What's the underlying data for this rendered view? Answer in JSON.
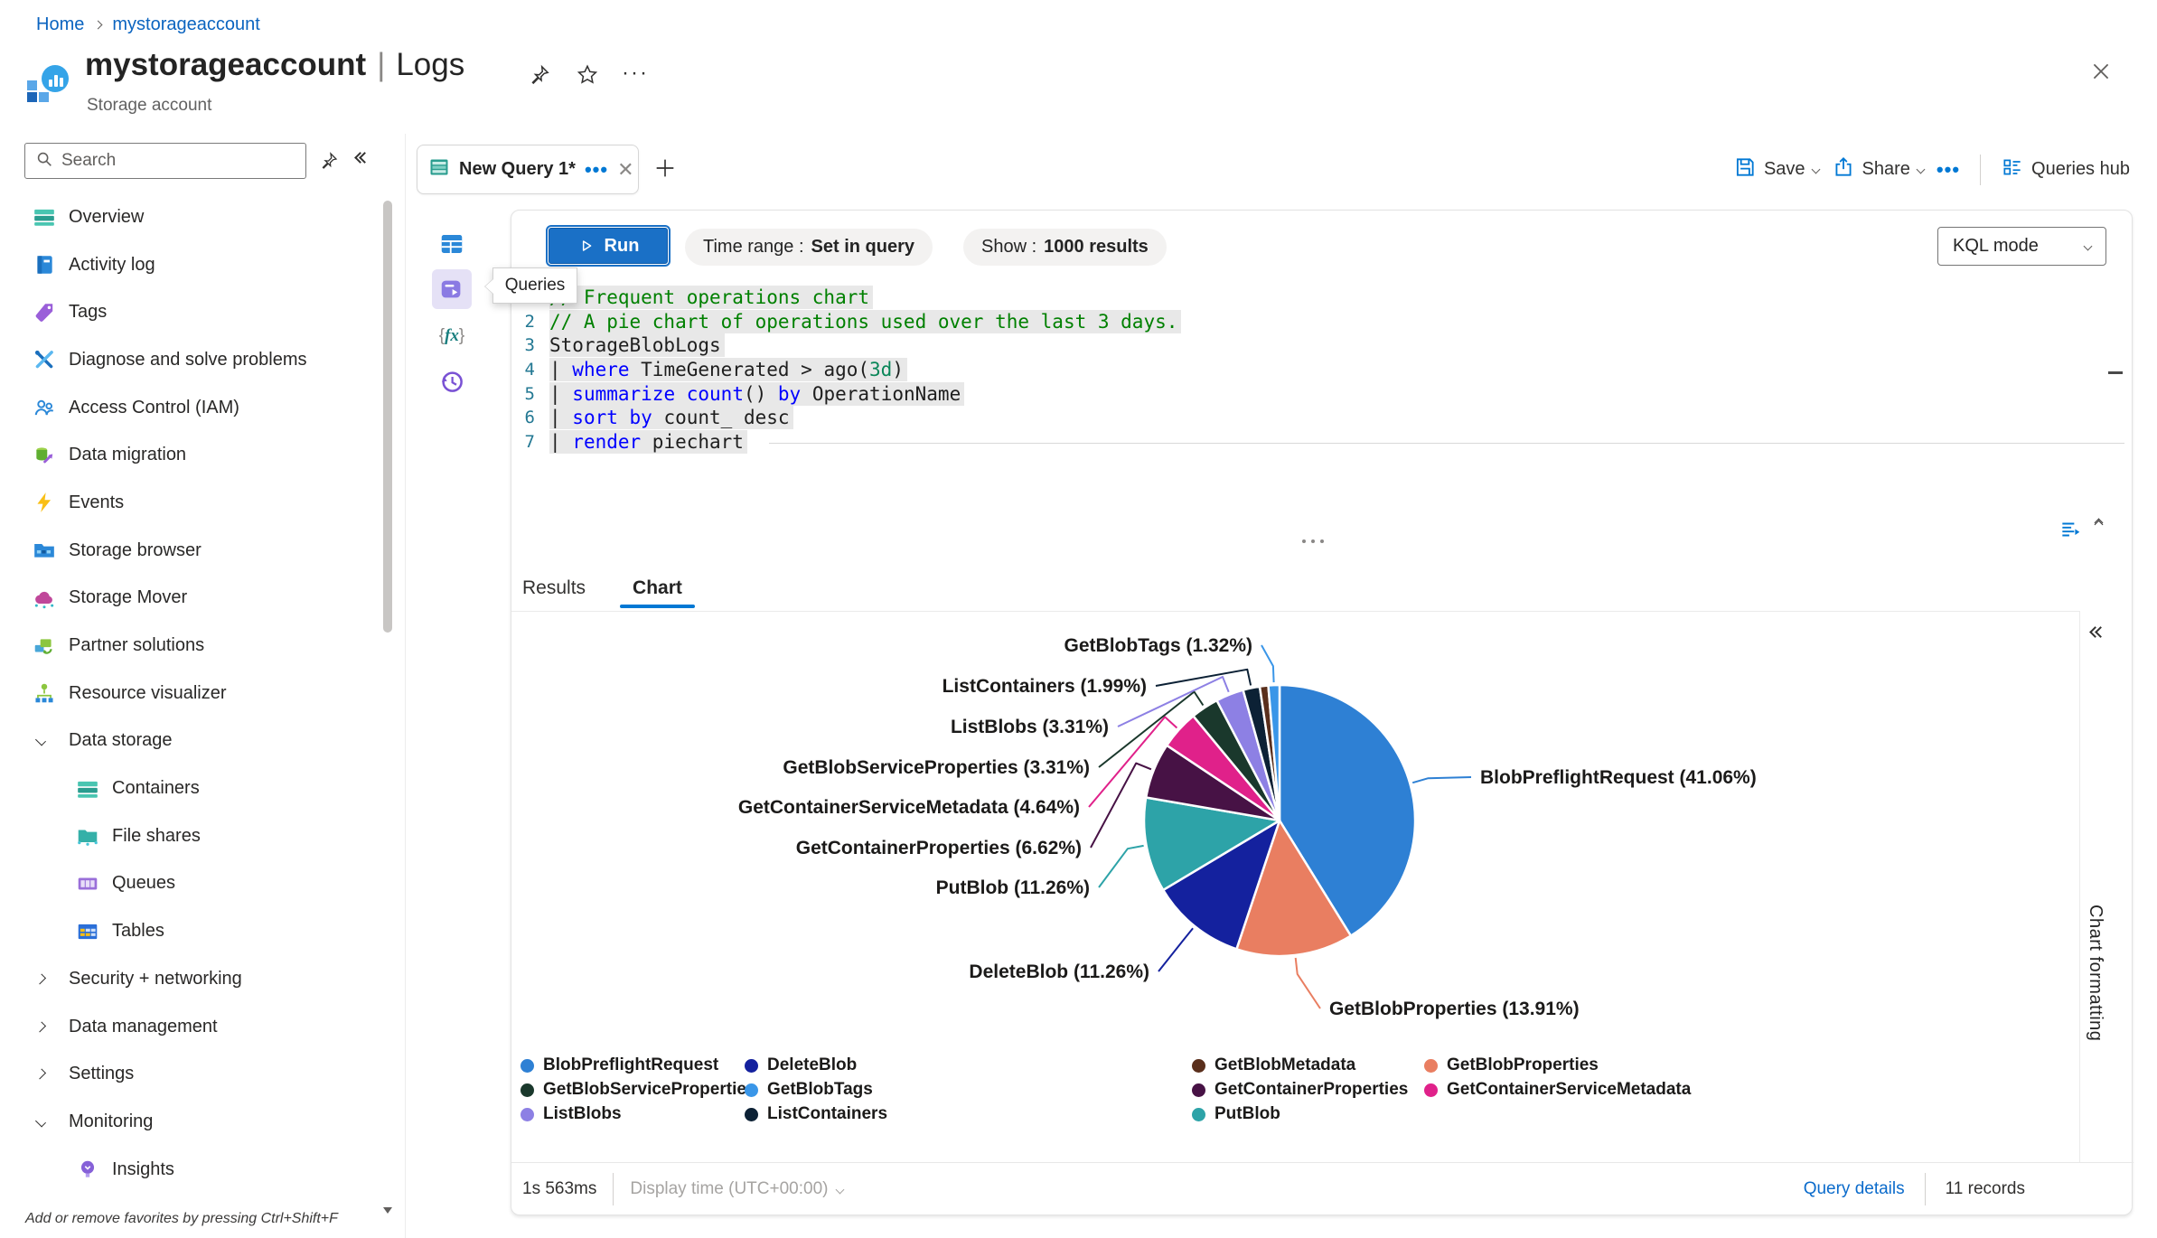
{
  "breadcrumb": {
    "items": [
      "Home",
      "mystorageaccount"
    ]
  },
  "header": {
    "title": "mystorageaccount",
    "divider": "|",
    "page": "Logs",
    "subtitle": "Storage account"
  },
  "sidebar": {
    "search_placeholder": "Search",
    "items": [
      {
        "label": "Overview",
        "icon": "overview",
        "level": 0
      },
      {
        "label": "Activity log",
        "icon": "activity-log",
        "level": 0
      },
      {
        "label": "Tags",
        "icon": "tags",
        "level": 0
      },
      {
        "label": "Diagnose and solve problems",
        "icon": "diagnose",
        "level": 0
      },
      {
        "label": "Access Control (IAM)",
        "icon": "access-control",
        "level": 0
      },
      {
        "label": "Data migration",
        "icon": "data-migration",
        "level": 0
      },
      {
        "label": "Events",
        "icon": "events",
        "level": 0
      },
      {
        "label": "Storage browser",
        "icon": "storage-browser",
        "level": 0
      },
      {
        "label": "Storage Mover",
        "icon": "storage-mover",
        "level": 0
      },
      {
        "label": "Partner solutions",
        "icon": "partner-solutions",
        "level": 0
      },
      {
        "label": "Resource visualizer",
        "icon": "resource-visualizer",
        "level": 0
      },
      {
        "label": "Data storage",
        "group": true,
        "expanded": true
      },
      {
        "label": "Containers",
        "icon": "containers",
        "level": 1
      },
      {
        "label": "File shares",
        "icon": "file-shares",
        "level": 1
      },
      {
        "label": "Queues",
        "icon": "queues",
        "level": 1
      },
      {
        "label": "Tables",
        "icon": "tables",
        "level": 1
      },
      {
        "label": "Security + networking",
        "group": true,
        "expanded": false
      },
      {
        "label": "Data management",
        "group": true,
        "expanded": false
      },
      {
        "label": "Settings",
        "group": true,
        "expanded": false
      },
      {
        "label": "Monitoring",
        "group": true,
        "expanded": true
      },
      {
        "label": "Insights",
        "icon": "insights",
        "level": 1
      }
    ],
    "footer_hint": "Add or remove favorites by pressing Ctrl+Shift+F"
  },
  "tabbar": {
    "tab_title": "New Query 1*",
    "save_label": "Save",
    "share_label": "Share",
    "queries_hub_label": "Queries hub"
  },
  "toolbar": {
    "run_label": "Run",
    "time_range_label": "Time range :",
    "time_range_value": "Set in query",
    "show_label": "Show :",
    "show_value": "1000 results",
    "mode_label": "KQL mode"
  },
  "tooltip_label": "Queries",
  "editor": {
    "lines": [
      {
        "num": 1,
        "segments": [
          {
            "t": "// Frequent operations chart",
            "s": "comment"
          }
        ]
      },
      {
        "num": 2,
        "segments": [
          {
            "t": "// A pie chart of operations used over the last 3 days.",
            "s": "comment"
          }
        ]
      },
      {
        "num": 3,
        "segments": [
          {
            "t": "StorageBlobLogs",
            "s": "plain"
          }
        ]
      },
      {
        "num": 4,
        "segments": [
          {
            "t": "| ",
            "s": "plain"
          },
          {
            "t": "where",
            "s": "keyword"
          },
          {
            "t": " TimeGenerated > ago(",
            "s": "plain"
          },
          {
            "t": "3d",
            "s": "number"
          },
          {
            "t": ")",
            "s": "plain"
          }
        ]
      },
      {
        "num": 5,
        "segments": [
          {
            "t": "| ",
            "s": "plain"
          },
          {
            "t": "summarize",
            "s": "keyword"
          },
          {
            "t": " ",
            "s": "plain"
          },
          {
            "t": "count",
            "s": "keyword"
          },
          {
            "t": "() ",
            "s": "plain"
          },
          {
            "t": "by",
            "s": "keyword"
          },
          {
            "t": " OperationName",
            "s": "plain"
          }
        ]
      },
      {
        "num": 6,
        "segments": [
          {
            "t": "| ",
            "s": "plain"
          },
          {
            "t": "sort",
            "s": "keyword"
          },
          {
            "t": " ",
            "s": "plain"
          },
          {
            "t": "by",
            "s": "keyword"
          },
          {
            "t": " count_ desc",
            "s": "plain"
          }
        ]
      },
      {
        "num": 7,
        "segments": [
          {
            "t": "| ",
            "s": "plain"
          },
          {
            "t": "render",
            "s": "keyword"
          },
          {
            "t": " piechart",
            "s": "plain"
          }
        ]
      }
    ]
  },
  "results_tabs": {
    "results": "Results",
    "chart": "Chart",
    "active": "Chart"
  },
  "chart_data": {
    "type": "pie",
    "value_field": "count_ percentage",
    "category_field": "OperationName",
    "legend_position": "bottom",
    "legend_columns": 4,
    "slices": [
      {
        "label": "BlobPreflightRequest",
        "value": 41.06,
        "color": "#2e80d4",
        "callout": true
      },
      {
        "label": "GetBlobProperties",
        "value": 13.91,
        "color": "#e97e61",
        "callout": true
      },
      {
        "label": "DeleteBlob",
        "value": 11.26,
        "color": "#14219e",
        "callout": true
      },
      {
        "label": "PutBlob",
        "value": 11.26,
        "color": "#2da3a8",
        "callout": true
      },
      {
        "label": "GetContainerProperties",
        "value": 6.62,
        "color": "#471245",
        "callout": true
      },
      {
        "label": "GetContainerServiceMetadata",
        "value": 4.64,
        "color": "#e0218a",
        "callout": true
      },
      {
        "label": "GetBlobServiceProperties",
        "value": 3.31,
        "color": "#1a382c",
        "callout": true
      },
      {
        "label": "ListBlobs",
        "value": 3.31,
        "color": "#8d80e4",
        "callout": true
      },
      {
        "label": "ListContainers",
        "value": 1.99,
        "color": "#0c2135",
        "callout": true
      },
      {
        "label": "GetBlobMetadata",
        "value": 1.02,
        "color": "#5a2f1c",
        "callout": false
      },
      {
        "label": "GetBlobTags",
        "value": 1.32,
        "color": "#3a96e8",
        "callout": true
      }
    ]
  },
  "statusbar": {
    "elapsed": "1s 563ms",
    "display_time": "Display time (UTC+00:00)",
    "query_details": "Query details",
    "record_count": "11 records"
  },
  "chart_panel": {
    "title": "Chart formatting"
  },
  "colors": {
    "accent": "#0078d4",
    "run_button": "#1a70c6",
    "code_highlight": "#e8e8e8"
  }
}
